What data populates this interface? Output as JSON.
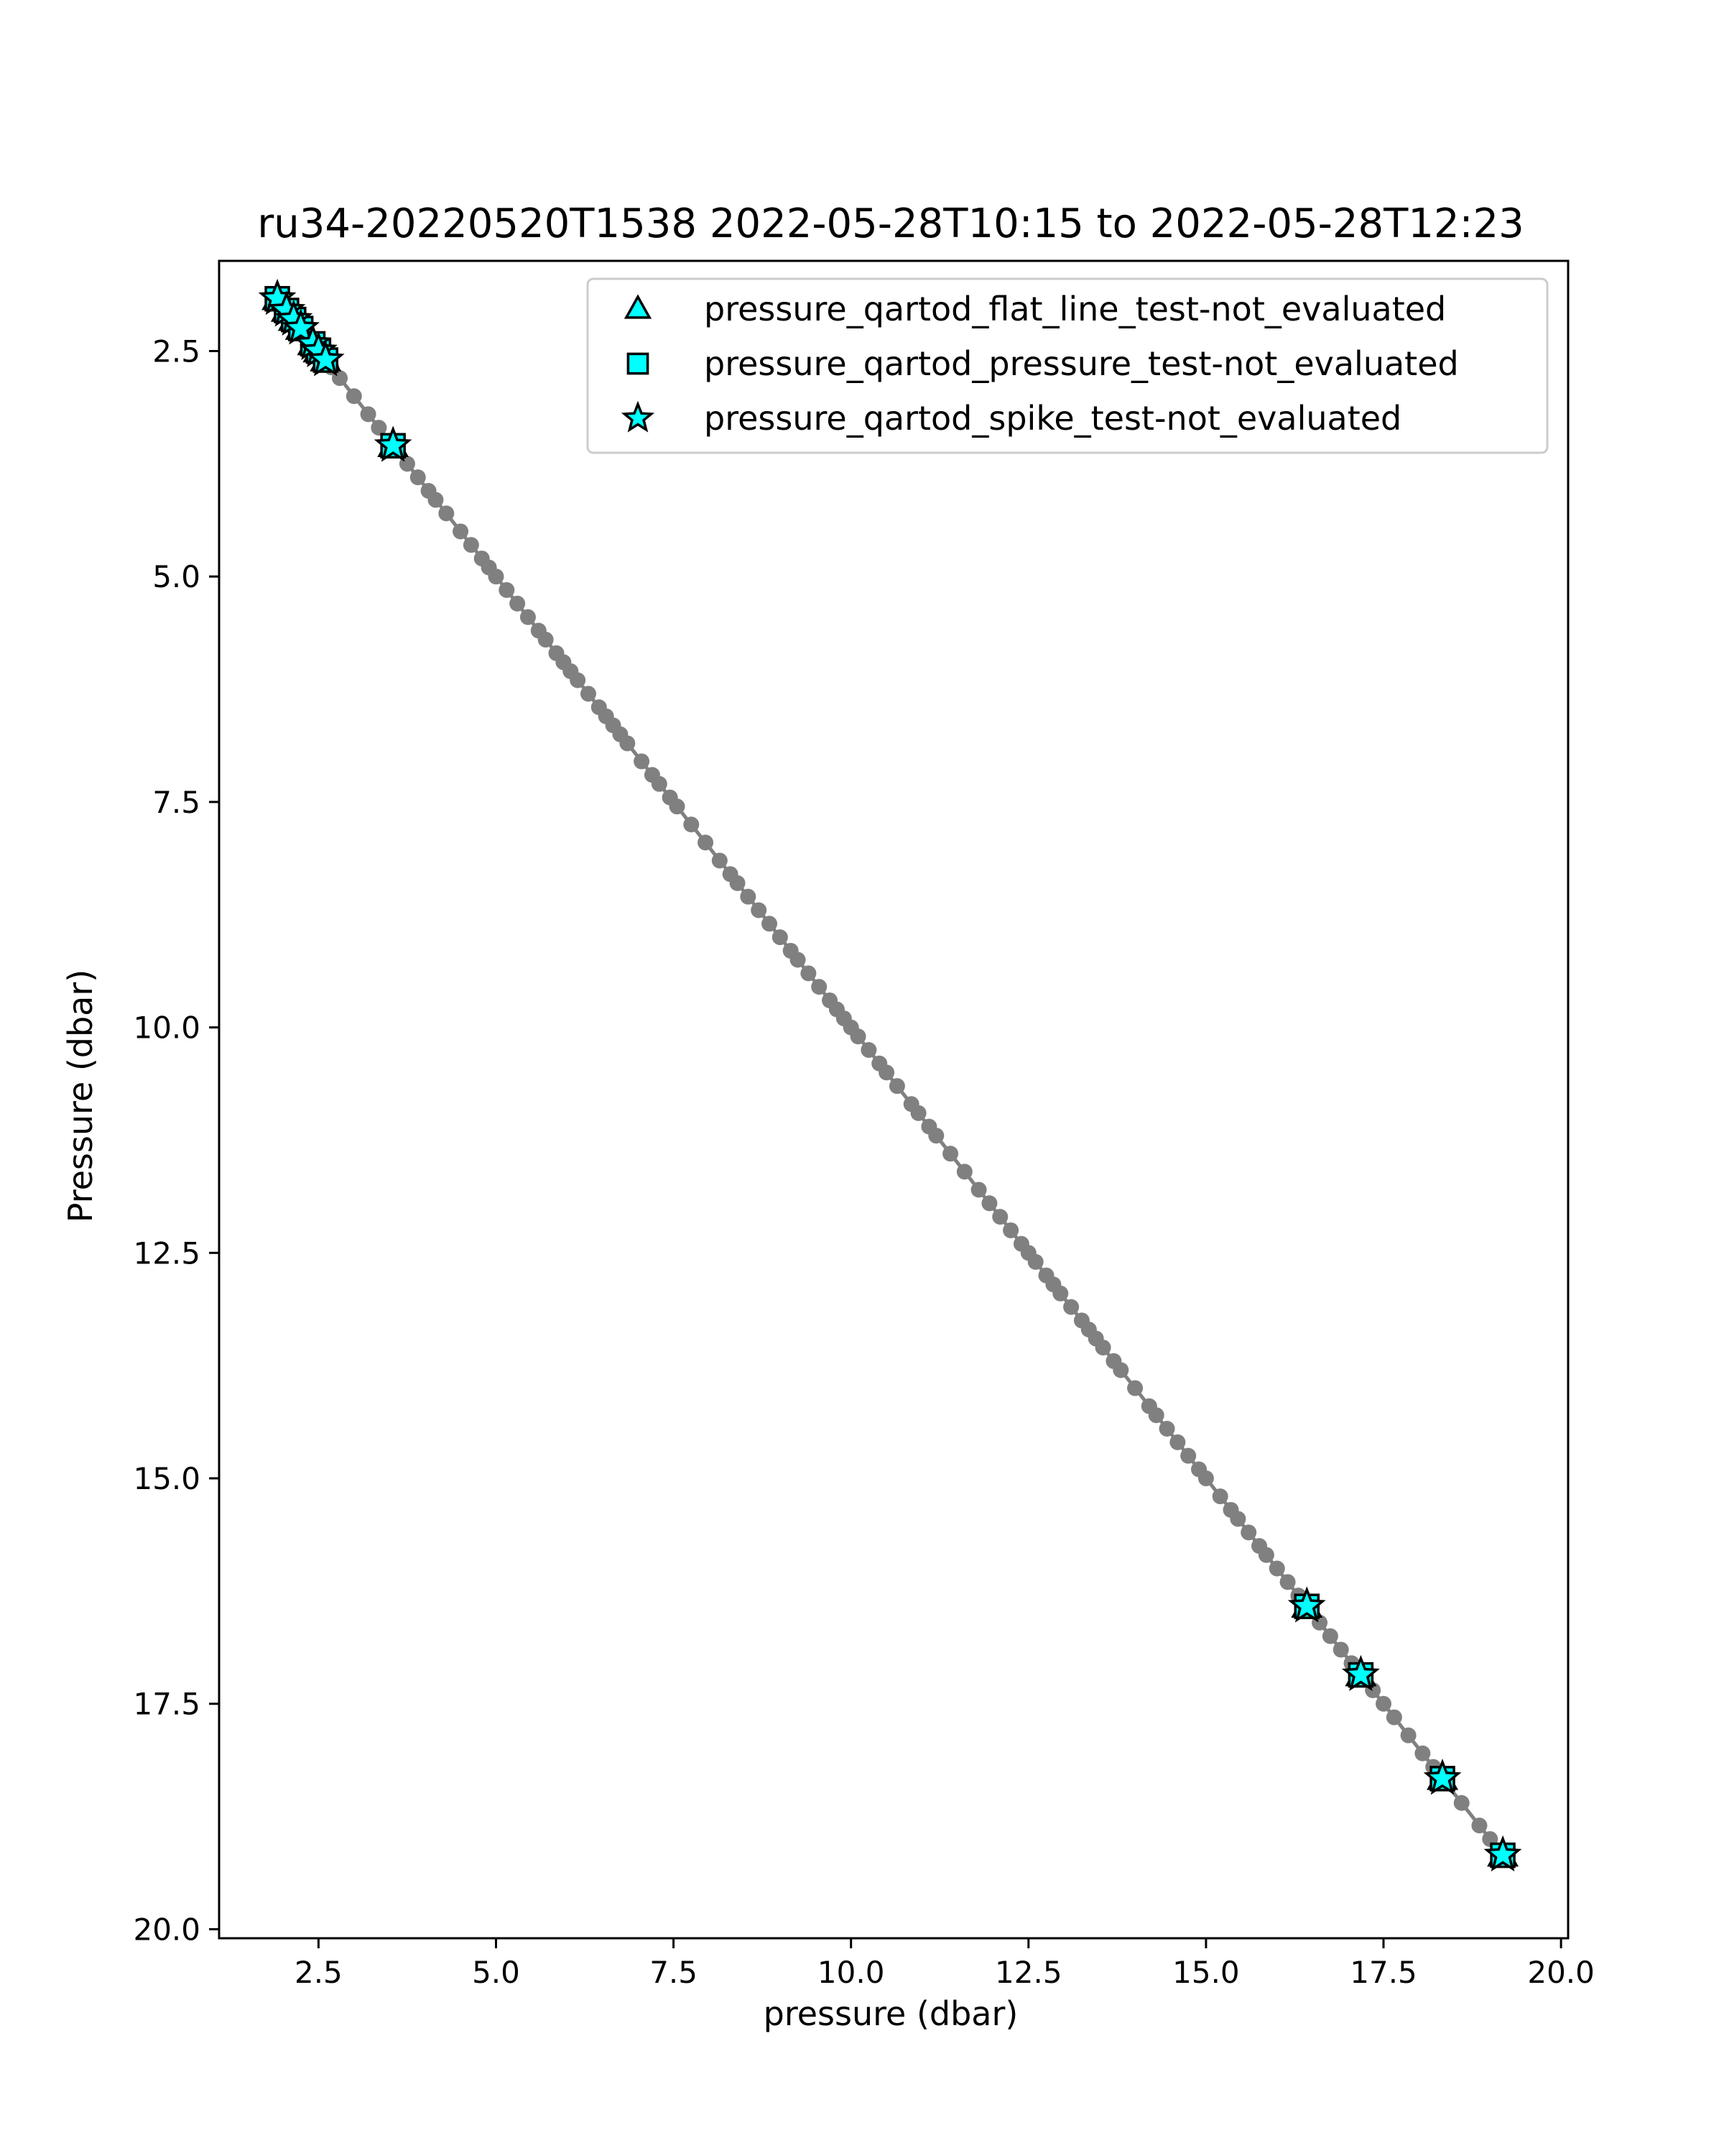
{
  "chart_data": {
    "type": "scatter",
    "title": "ru34-20220520T1538 2022-05-28T10:15 to 2022-05-28T12:23",
    "xlabel": "pressure (dbar)",
    "ylabel": "Pressure (dbar)",
    "xlim": [
      1.1,
      20.1
    ],
    "ylim": [
      20.1,
      1.5
    ],
    "y_inverted": true,
    "grid": false,
    "legend_position": "top-right",
    "x_ticks": [
      "2.5",
      "5.0",
      "7.5",
      "10.0",
      "12.5",
      "15.0",
      "17.5",
      "20.0"
    ],
    "y_ticks": [
      "2.5",
      "5.0",
      "7.5",
      "10.0",
      "12.5",
      "15.0",
      "17.5",
      "20.0"
    ],
    "x_tick_values": [
      2.5,
      5.0,
      7.5,
      10.0,
      12.5,
      15.0,
      17.5,
      20.0
    ],
    "y_tick_values": [
      2.5,
      5.0,
      7.5,
      10.0,
      12.5,
      15.0,
      17.5,
      20.0
    ],
    "profile_color": "#808080",
    "flag_color": "#00ffff",
    "profile_points": [
      1.92,
      2.0,
      2.08,
      2.15,
      2.22,
      2.3,
      2.38,
      2.45,
      2.52,
      2.6,
      2.68,
      2.8,
      3.0,
      3.2,
      3.35,
      3.55,
      3.75,
      3.9,
      4.05,
      4.15,
      4.3,
      4.5,
      4.65,
      4.8,
      4.9,
      5.0,
      5.15,
      5.3,
      5.45,
      5.6,
      5.7,
      5.85,
      5.95,
      6.05,
      6.15,
      6.3,
      6.45,
      6.55,
      6.65,
      6.75,
      6.85,
      7.05,
      7.2,
      7.3,
      7.45,
      7.55,
      7.75,
      7.95,
      8.15,
      8.3,
      8.4,
      8.55,
      8.7,
      8.85,
      9.0,
      9.15,
      9.25,
      9.4,
      9.55,
      9.7,
      9.8,
      9.9,
      10.0,
      10.1,
      10.25,
      10.4,
      10.5,
      10.65,
      10.85,
      10.95,
      11.1,
      11.2,
      11.4,
      11.6,
      11.8,
      11.95,
      12.1,
      12.25,
      12.4,
      12.5,
      12.6,
      12.75,
      12.85,
      12.95,
      13.1,
      13.25,
      13.35,
      13.45,
      13.55,
      13.7,
      13.8,
      14.0,
      14.2,
      14.3,
      14.45,
      14.6,
      14.75,
      14.9,
      15.0,
      15.2,
      15.35,
      15.45,
      15.6,
      15.75,
      15.85,
      16.0,
      16.15,
      16.3,
      16.45,
      16.6,
      16.75,
      16.9,
      17.05,
      17.2,
      17.35,
      17.5,
      17.65,
      17.85,
      18.05,
      18.2,
      18.35,
      18.6,
      18.85,
      19.0,
      19.18
    ],
    "series": [
      {
        "name": "pressure_qartod_flat_line_test-not_evaluated",
        "marker": "triangle",
        "x": [
          1.92,
          2.05,
          2.15,
          2.25,
          2.42,
          2.5,
          2.6,
          3.55,
          16.42,
          17.18,
          18.33,
          19.18
        ],
        "y": [
          1.92,
          2.05,
          2.15,
          2.25,
          2.42,
          2.5,
          2.6,
          3.55,
          16.42,
          17.18,
          18.33,
          19.18
        ]
      },
      {
        "name": "pressure_qartod_pressure_test-not_evaluated",
        "marker": "square",
        "x": [
          1.92,
          2.05,
          2.15,
          2.25,
          2.42,
          2.5,
          2.6,
          3.55,
          16.42,
          17.18,
          18.33,
          19.18
        ],
        "y": [
          1.92,
          2.05,
          2.15,
          2.25,
          2.42,
          2.5,
          2.6,
          3.55,
          16.42,
          17.18,
          18.33,
          19.18
        ]
      },
      {
        "name": "pressure_qartod_spike_test-not_evaluated",
        "marker": "star",
        "x": [
          1.92,
          2.05,
          2.15,
          2.25,
          2.42,
          2.5,
          2.6,
          3.55,
          16.42,
          17.18,
          18.33,
          19.18
        ],
        "y": [
          1.92,
          2.05,
          2.15,
          2.25,
          2.42,
          2.5,
          2.6,
          3.55,
          16.42,
          17.18,
          18.33,
          19.18
        ]
      }
    ]
  }
}
